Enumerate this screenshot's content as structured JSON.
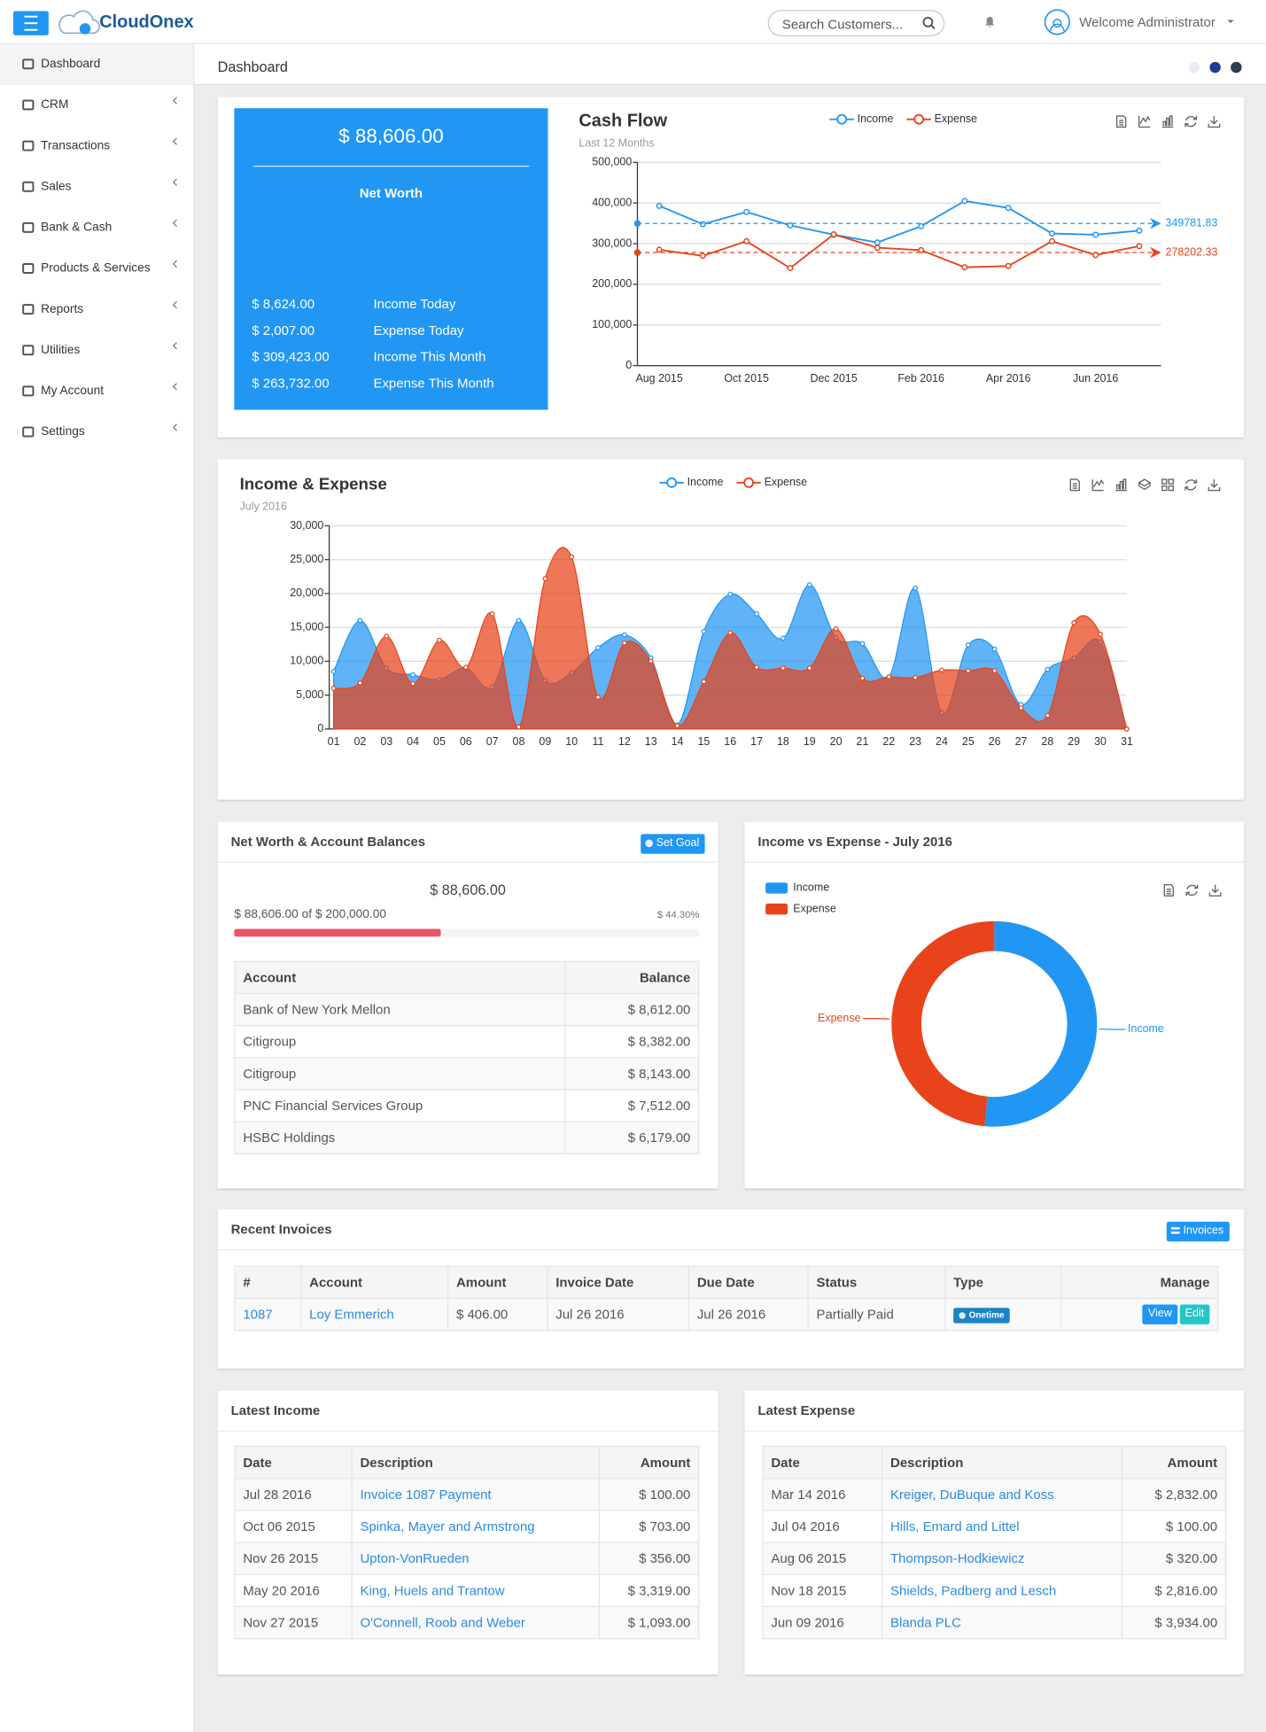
{
  "header": {
    "brand": "CloudOnex",
    "search_placeholder": "Search Customers...",
    "welcome": "Welcome Administrator"
  },
  "sidebar": {
    "items": [
      "Dashboard",
      "CRM",
      "Transactions",
      "Sales",
      "Bank & Cash",
      "Products & Services",
      "Reports",
      "Utilities",
      "My Account",
      "Settings"
    ]
  },
  "page_title": "Dashboard",
  "net_worth": {
    "amount": "$ 88,606.00",
    "label": "Net Worth",
    "rows": [
      [
        "$ 8,624.00",
        "Income Today"
      ],
      [
        "$ 2,007.00",
        "Expense Today"
      ],
      [
        "$ 309,423.00",
        "Income This Month"
      ],
      [
        "$ 263,732.00",
        "Expense This Month"
      ]
    ]
  },
  "chart_data": [
    {
      "type": "line",
      "title": "Cash Flow",
      "subtitle": "Last 12 Months",
      "categories": [
        "Aug 2015",
        null,
        "Oct 2015",
        null,
        "Dec 2015",
        null,
        "Feb 2016",
        null,
        "Apr 2016",
        null,
        "Jun 2016",
        null
      ],
      "series": [
        {
          "name": "Income",
          "color": "#2196f3",
          "values": [
            393000,
            348000,
            378000,
            345000,
            322000,
            303000,
            343000,
            405000,
            388000,
            325000,
            322000,
            332000
          ],
          "mark_line": 349781.83
        },
        {
          "name": "Expense",
          "color": "#e8431a",
          "values": [
            285000,
            270000,
            306000,
            240000,
            323000,
            290000,
            284000,
            242000,
            245000,
            306000,
            272000,
            294000
          ],
          "mark_line": 278202.33
        }
      ],
      "ylim": [
        0,
        500000
      ],
      "yticks": [
        0,
        {
          "value": 100000,
          "label": "100,000"
        },
        {
          "value": 200000,
          "label": "200,000"
        },
        {
          "value": 300000,
          "label": "300,000"
        },
        {
          "value": 400000,
          "label": "400,000"
        },
        {
          "value": 500000,
          "label": "500,000"
        }
      ],
      "grid": true
    },
    {
      "type": "area",
      "title": "Income & Expense",
      "subtitle": "July 2016",
      "categories": [
        "01",
        "02",
        "03",
        "04",
        "05",
        "06",
        "07",
        "08",
        "09",
        "10",
        "11",
        "12",
        "13",
        "14",
        "15",
        "16",
        "17",
        "18",
        "19",
        "20",
        "21",
        "22",
        "23",
        "24",
        "25",
        "26",
        "27",
        "28",
        "29",
        "30",
        "31"
      ],
      "series": [
        {
          "name": "Income",
          "color": "#2196f3",
          "values": [
            8500,
            16000,
            9000,
            8000,
            7300,
            9000,
            6200,
            16000,
            7200,
            8300,
            12000,
            13900,
            10500,
            600,
            14400,
            19900,
            17000,
            13400,
            21300,
            13500,
            12600,
            7700,
            20800,
            2400,
            12400,
            11800,
            3600,
            8800,
            10500,
            12800,
            0
          ]
        },
        {
          "name": "Expense",
          "color": "#e8431a",
          "values": [
            6000,
            6800,
            13700,
            6700,
            13100,
            9100,
            17000,
            300,
            22200,
            25400,
            4700,
            12700,
            10000,
            500,
            7000,
            14200,
            9100,
            9000,
            9000,
            14800,
            7500,
            7700,
            7600,
            8700,
            8600,
            8600,
            3100,
            2000,
            15700,
            14000,
            0
          ]
        }
      ],
      "ylim": [
        0,
        30000
      ],
      "yticks": [
        0,
        {
          "value": 5000,
          "label": "5,000"
        },
        {
          "value": 10000,
          "label": "10,000"
        },
        {
          "value": 15000,
          "label": "15,000"
        },
        {
          "value": 20000,
          "label": "20,000"
        },
        {
          "value": 25000,
          "label": "25,000"
        },
        {
          "value": 30000,
          "label": "30,000"
        }
      ],
      "grid": true
    },
    {
      "type": "donut",
      "title": "Income vs Expense - July 2016",
      "categories": [
        "Income",
        "Expense"
      ],
      "values": [
        51.5,
        48.5
      ],
      "colors": [
        "#2196f3",
        "#e8431a"
      ]
    }
  ],
  "account_balances": {
    "title": "Net Worth & Account Balances",
    "button": "Set Goal",
    "amount": "$ 88,606.00",
    "progress_text": "$ 88,606.00 of $ 200,000.00",
    "percent_label": "$ 44.30%",
    "percent": 44.3,
    "columns": [
      "Account",
      "Balance"
    ],
    "rows": [
      [
        "Bank of New York Mellon",
        "$ 8,612.00"
      ],
      [
        "Citigroup",
        "$ 8,382.00"
      ],
      [
        "Citigroup",
        "$ 8,143.00"
      ],
      [
        "PNC Financial Services Group",
        "$ 7,512.00"
      ],
      [
        "HSBC Holdings",
        "$ 6,179.00"
      ]
    ]
  },
  "recent_invoices": {
    "title": "Recent Invoices",
    "button": "Invoices",
    "columns": [
      "#",
      "Account",
      "Amount",
      "Invoice Date",
      "Due Date",
      "Status",
      "Type",
      "Manage"
    ],
    "rows": [
      [
        "1087",
        "Loy Emmerich",
        "$ 406.00",
        "Jul 26 2016",
        "Jul 26 2016",
        "Partially Paid",
        "Onetime"
      ]
    ],
    "actions": [
      "View",
      "Edit"
    ]
  },
  "latest_income": {
    "title": "Latest Income",
    "columns": [
      "Date",
      "Description",
      "Amount"
    ],
    "rows": [
      [
        "Jul 28 2016",
        "Invoice 1087 Payment",
        "$ 100.00"
      ],
      [
        "Oct 06 2015",
        "Spinka, Mayer and Armstrong",
        "$ 703.00"
      ],
      [
        "Nov 26 2015",
        "Upton-VonRueden",
        "$ 356.00"
      ],
      [
        "May 20 2016",
        "King, Huels and Trantow",
        "$ 3,319.00"
      ],
      [
        "Nov 27 2015",
        "O'Connell, Roob and Weber",
        "$ 1,093.00"
      ]
    ]
  },
  "latest_expense": {
    "title": "Latest Expense",
    "columns": [
      "Date",
      "Description",
      "Amount"
    ],
    "rows": [
      [
        "Mar 14 2016",
        "Kreiger, DuBuque and Koss",
        "$ 2,832.00"
      ],
      [
        "Jul 04 2016",
        "Hills, Emard and Littel",
        "$ 100.00"
      ],
      [
        "Aug 06 2015",
        "Thompson-Hodkiewicz",
        "$ 320.00"
      ],
      [
        "Nov 18 2015",
        "Shields, Padberg and Lesch",
        "$ 2,816.00"
      ],
      [
        "Jun 09 2016",
        "Blanda PLC",
        "$ 3,934.00"
      ]
    ]
  }
}
